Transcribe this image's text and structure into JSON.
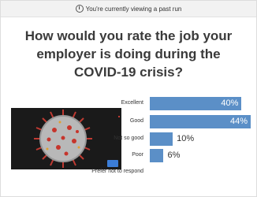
{
  "banner": {
    "text": "You're currently viewing a past run"
  },
  "chart_data": {
    "type": "bar",
    "orientation": "horizontal",
    "title": "How would you rate the job your employer is doing during the COVID-19 crisis?",
    "categories": [
      "Excellent",
      "Good",
      "Not so good",
      "Poor",
      "Prefer not to respond"
    ],
    "values": [
      40,
      44,
      10,
      6,
      null
    ],
    "value_labels": [
      "40%",
      "44%",
      "10%",
      "6%",
      null
    ],
    "color": "#5b8fc7"
  }
}
